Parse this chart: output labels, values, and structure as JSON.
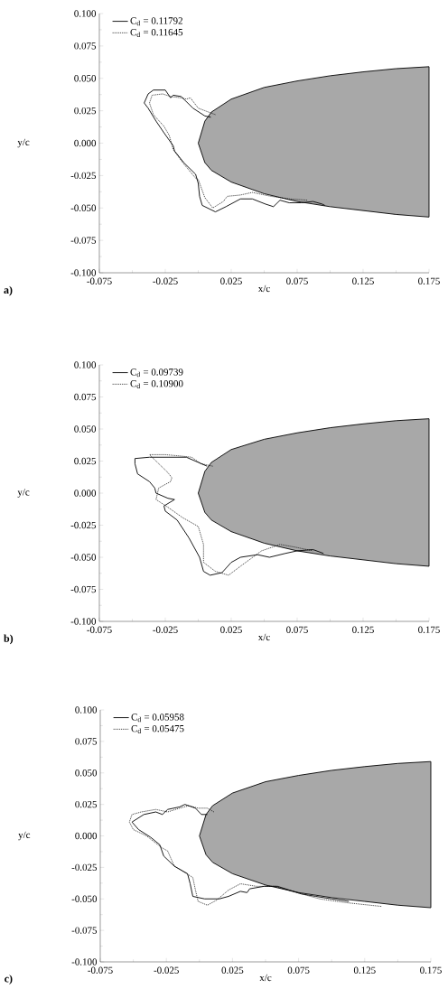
{
  "chart_data": [
    {
      "type": "line",
      "xlabel": "x/c",
      "ylabel": "y/c",
      "annotations": [
        "a)"
      ],
      "legend": "top left",
      "xlim": [
        -0.075,
        0.175
      ],
      "ylim": [
        -0.1,
        0.1
      ],
      "xticks": [
        -0.075,
        -0.025,
        0.025,
        0.075,
        0.125,
        0.175
      ],
      "yticks": [
        {
          "value": -0.1,
          "label": "-0.100"
        },
        -0.075,
        {
          "value": -0.05,
          "label": "-0.050"
        },
        -0.025,
        {
          "value": 0,
          "label": "0.000"
        },
        0.025,
        {
          "value": 0.05,
          "label": "0.050"
        },
        0.075,
        {
          "value": 0.1,
          "label": "0.100"
        }
      ],
      "series": [
        {
          "type": "area",
          "color": "#a8a8a8",
          "x": [
            0.0,
            0.005,
            0.01,
            0.025,
            0.05,
            0.075,
            0.1,
            0.125,
            0.15,
            0.175,
            0.175,
            0.15,
            0.125,
            0.1,
            0.075,
            0.05,
            0.025,
            0.01,
            0.005
          ],
          "values": [
            0.0,
            0.017,
            0.024,
            0.034,
            0.043,
            0.048,
            0.052,
            0.055,
            0.0575,
            0.059,
            -0.057,
            -0.055,
            -0.052,
            -0.049,
            -0.045,
            -0.039,
            -0.03,
            -0.021,
            -0.015
          ]
        },
        {
          "name": "C$_{d}$ = 0.11792",
          "color": "#000000",
          "line_style": "solid",
          "x": [
            0.0095,
            0.005,
            -0.004,
            -0.013,
            -0.019,
            -0.021,
            -0.025,
            -0.034,
            -0.038,
            -0.041,
            -0.038,
            -0.032,
            -0.026,
            -0.019,
            -0.018,
            -0.011,
            -0.002,
            0.0,
            0.001,
            0.003,
            0.013,
            0.021,
            0.032,
            0.041,
            0.051,
            0.057,
            0.062,
            0.069,
            0.078,
            0.087,
            0.094,
            0.096
          ],
          "values": [
            0.02,
            0.021,
            0.027,
            0.036,
            0.037,
            0.035,
            0.041,
            0.041,
            0.038,
            0.031,
            0.027,
            0.017,
            0.008,
            -0.002,
            -0.006,
            -0.015,
            -0.024,
            -0.031,
            -0.041,
            -0.048,
            -0.053,
            -0.049,
            -0.043,
            -0.043,
            -0.047,
            -0.049,
            -0.044,
            -0.046,
            -0.046,
            -0.045,
            -0.047,
            -0.048
          ]
        },
        {
          "name": "C$_{d}$ = 0.11645",
          "color": "#000000",
          "line_style": "dotted",
          "x": [
            0.013,
            0.0,
            -0.006,
            -0.009,
            -0.013,
            -0.021,
            -0.027,
            -0.035,
            -0.037,
            -0.034,
            -0.026,
            -0.022,
            -0.019,
            -0.011,
            -0.002,
            0.0,
            0.005,
            0.011,
            0.019,
            0.022,
            0.032,
            0.041,
            0.055,
            0.069,
            0.083
          ],
          "values": [
            0.022,
            0.027,
            0.035,
            0.034,
            0.035,
            0.036,
            0.038,
            0.037,
            0.031,
            0.022,
            0.013,
            0.006,
            -0.005,
            -0.016,
            -0.027,
            -0.028,
            -0.042,
            -0.05,
            -0.045,
            -0.041,
            -0.04,
            -0.038,
            -0.041,
            -0.043,
            -0.044
          ]
        }
      ]
    },
    {
      "type": "line",
      "xlabel": "x/c",
      "ylabel": "y/c",
      "annotations": [
        "b)"
      ],
      "legend": "top left",
      "xlim": [
        -0.075,
        0.175
      ],
      "ylim": [
        -0.1,
        0.1
      ],
      "xticks": [
        -0.075,
        -0.025,
        0.025,
        0.075,
        0.125,
        0.175
      ],
      "yticks": [
        {
          "value": -0.1,
          "label": "-0.100"
        },
        -0.075,
        {
          "value": -0.05,
          "label": "-0.050"
        },
        -0.025,
        {
          "value": 0,
          "label": "0.000"
        },
        0.025,
        {
          "value": 0.05,
          "label": "0.050"
        },
        0.075,
        {
          "value": 0.1,
          "label": "0.100"
        }
      ],
      "series": [
        {
          "type": "area",
          "color": "#a8a8a8",
          "x": [
            0.0,
            0.005,
            0.01,
            0.025,
            0.05,
            0.075,
            0.1,
            0.125,
            0.15,
            0.175,
            0.175,
            0.15,
            0.125,
            0.1,
            0.075,
            0.05,
            0.025,
            0.01,
            0.005
          ],
          "values": [
            0.0,
            0.017,
            0.024,
            0.034,
            0.042,
            0.047,
            0.051,
            0.054,
            0.0565,
            0.058,
            -0.057,
            -0.055,
            -0.052,
            -0.049,
            -0.045,
            -0.039,
            -0.03,
            -0.021,
            -0.015
          ]
        },
        {
          "name": "C$_{d}$ = 0.09739",
          "color": "#000000",
          "line_style": "solid",
          "x": [
            0.0067,
            0.0,
            -0.009,
            -0.02,
            -0.037,
            -0.048,
            -0.048,
            -0.046,
            -0.037,
            -0.033,
            -0.032,
            -0.023,
            -0.018,
            -0.026,
            -0.025,
            -0.016,
            -0.007,
            0.001,
            0.004,
            0.009,
            0.018,
            0.025,
            0.032,
            0.045,
            0.054,
            0.066,
            0.075,
            0.087,
            0.095
          ],
          "values": [
            0.021,
            0.024,
            0.028,
            0.028,
            0.028,
            0.027,
            0.023,
            0.015,
            0.009,
            0.004,
            0.0,
            -0.004,
            -0.005,
            -0.01,
            -0.014,
            -0.021,
            -0.035,
            -0.05,
            -0.061,
            -0.064,
            -0.062,
            -0.054,
            -0.05,
            -0.048,
            -0.05,
            -0.047,
            -0.045,
            -0.044,
            -0.047
          ]
        },
        {
          "name": "C$_{d}$ = 0.10900",
          "color": "#000000",
          "line_style": "dotted",
          "x": [
            0.011,
            0.002,
            -0.005,
            -0.014,
            -0.025,
            -0.037,
            -0.033,
            -0.023,
            -0.02,
            -0.021,
            -0.03,
            -0.032,
            -0.023,
            -0.012,
            0.0,
            0.004,
            0.004,
            0.013,
            0.023,
            0.032,
            0.048,
            0.062,
            0.073,
            0.087
          ],
          "values": [
            0.021,
            0.023,
            0.028,
            0.029,
            0.03,
            0.03,
            0.026,
            0.016,
            0.012,
            0.009,
            0.004,
            -0.005,
            -0.011,
            -0.019,
            -0.026,
            -0.04,
            -0.054,
            -0.061,
            -0.064,
            -0.057,
            -0.045,
            -0.04,
            -0.042,
            -0.045
          ]
        }
      ]
    },
    {
      "type": "line",
      "xlabel": "x/c",
      "ylabel": "y/c",
      "annotations": [
        "c)"
      ],
      "legend": "top left",
      "xlim": [
        -0.075,
        0.175
      ],
      "ylim": [
        -0.1,
        0.1
      ],
      "xticks": [
        -0.075,
        -0.025,
        0.025,
        0.075,
        0.125,
        0.175
      ],
      "yticks": [
        {
          "value": -0.1,
          "label": "-0.100"
        },
        -0.075,
        {
          "value": -0.05,
          "label": "-0.050"
        },
        -0.025,
        {
          "value": 0,
          "label": "0.000"
        },
        0.025,
        {
          "value": 0.05,
          "label": "0.050"
        },
        0.075,
        {
          "value": 0.1,
          "label": "0.100"
        }
      ],
      "series": [
        {
          "type": "area",
          "color": "#a8a8a8",
          "x": [
            0.0,
            0.005,
            0.01,
            0.025,
            0.05,
            0.075,
            0.1,
            0.125,
            0.15,
            0.175,
            0.175,
            0.15,
            0.125,
            0.1,
            0.075,
            0.05,
            0.025,
            0.01,
            0.005
          ],
          "values": [
            0.0,
            0.017,
            0.024,
            0.034,
            0.043,
            0.048,
            0.052,
            0.055,
            0.0575,
            0.059,
            -0.057,
            -0.055,
            -0.052,
            -0.049,
            -0.045,
            -0.039,
            -0.03,
            -0.021,
            -0.015
          ]
        },
        {
          "name": "C$_{d}$ = 0.05958",
          "color": "#000000",
          "line_style": "solid",
          "x": [
            0.006,
            0.0015,
            -0.003,
            -0.011,
            -0.015,
            -0.024,
            -0.028,
            -0.033,
            -0.042,
            -0.051,
            -0.046,
            -0.037,
            -0.03,
            -0.027,
            -0.019,
            -0.009,
            -0.007,
            -0.005,
            0.004,
            0.015,
            0.022,
            0.031,
            0.036,
            0.038,
            0.049,
            0.059,
            0.068,
            0.077,
            0.088,
            0.1,
            0.113
          ],
          "values": [
            0.017,
            0.017,
            0.022,
            0.025,
            0.023,
            0.021,
            0.017,
            0.019,
            0.017,
            0.011,
            0.005,
            -0.001,
            -0.007,
            -0.016,
            -0.024,
            -0.03,
            -0.038,
            -0.048,
            -0.05,
            -0.05,
            -0.048,
            -0.044,
            -0.045,
            -0.042,
            -0.04,
            -0.04,
            -0.043,
            -0.046,
            -0.048,
            -0.05,
            -0.052
          ]
        },
        {
          "name": "C$_{d}$ = 0.05475",
          "color": "#000000",
          "line_style": "dotted",
          "x": [
            0.011,
            0.006,
            -0.001,
            -0.008,
            -0.015,
            -0.024,
            -0.033,
            -0.044,
            -0.051,
            -0.053,
            -0.05,
            -0.04,
            -0.029,
            -0.024,
            -0.019,
            -0.005,
            -0.003,
            -0.001,
            0.006,
            0.013,
            0.022,
            0.031,
            0.043,
            0.057,
            0.07,
            0.091,
            0.111,
            0.138
          ],
          "values": [
            0.019,
            0.022,
            0.022,
            0.024,
            0.022,
            0.019,
            0.021,
            0.019,
            0.017,
            0.011,
            0.005,
            0.0,
            -0.009,
            -0.012,
            -0.024,
            -0.033,
            -0.043,
            -0.052,
            -0.055,
            -0.051,
            -0.043,
            -0.038,
            -0.04,
            -0.04,
            -0.044,
            -0.05,
            -0.053,
            -0.056
          ]
        }
      ]
    }
  ]
}
